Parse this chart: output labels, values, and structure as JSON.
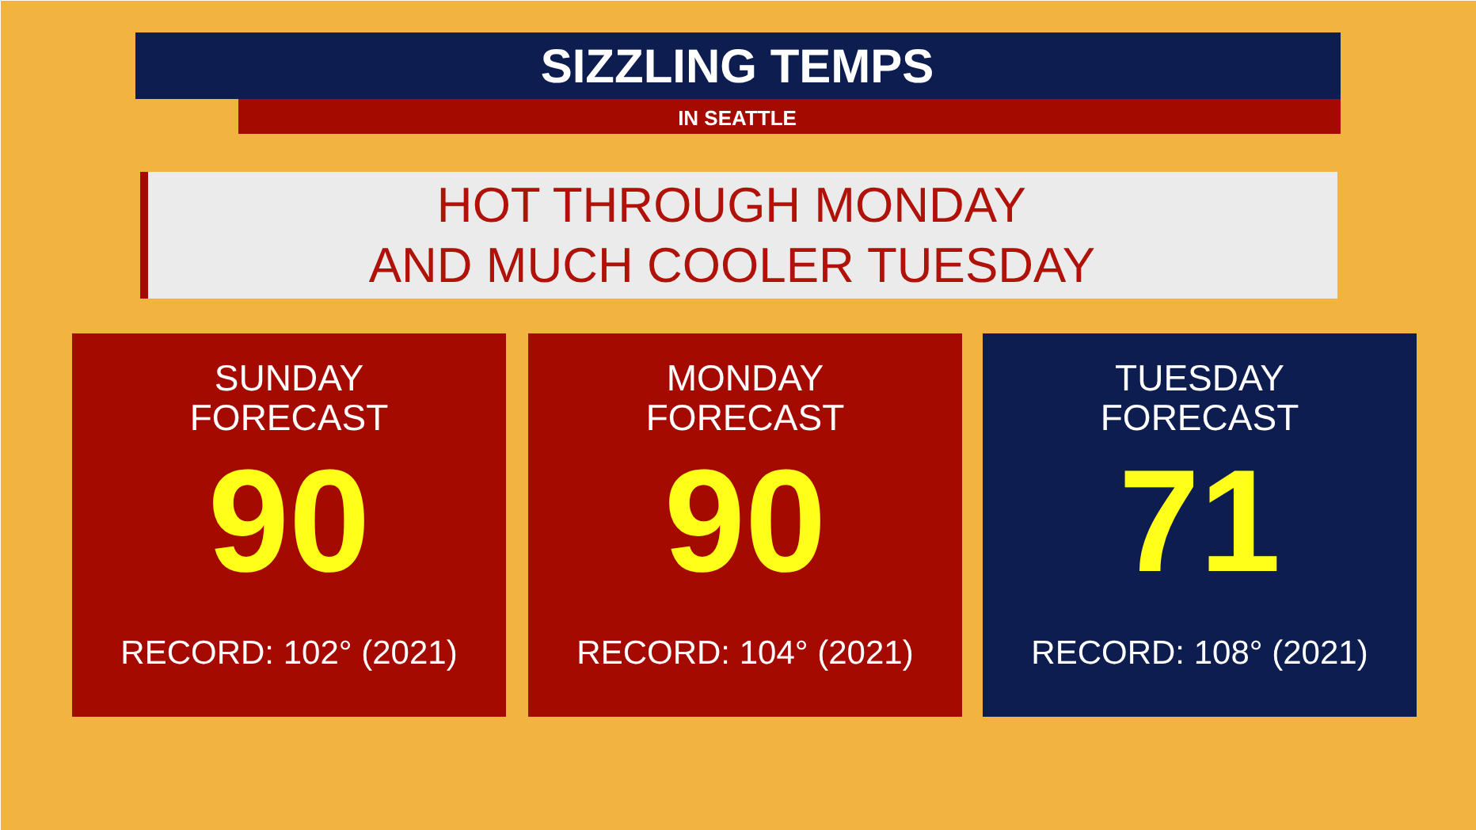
{
  "chart_data": {
    "type": "other",
    "title": "SIZZLING TEMPS",
    "subtitle": "IN SEATTLE",
    "categories": [
      "SUNDAY FORECAST",
      "MONDAY FORECAST",
      "TUESDAY FORECAST"
    ],
    "values": [
      90,
      90,
      71
    ],
    "colors": [
      "#a50a00",
      "#a50a00",
      "#0e1d50"
    ],
    "data_labels": true,
    "annotations": [
      "HOT THROUGH MONDAY",
      "AND MUCH COOLER TUESDAY",
      {
        "text": "RECORD: 102° (2021)",
        "x": "SUNDAY FORECAST"
      },
      {
        "text": "RECORD: 104° (2021)",
        "x": "MONDAY FORECAST"
      },
      {
        "text": "RECORD: 108° (2021)",
        "x": "TUESDAY FORECAST"
      }
    ]
  }
}
